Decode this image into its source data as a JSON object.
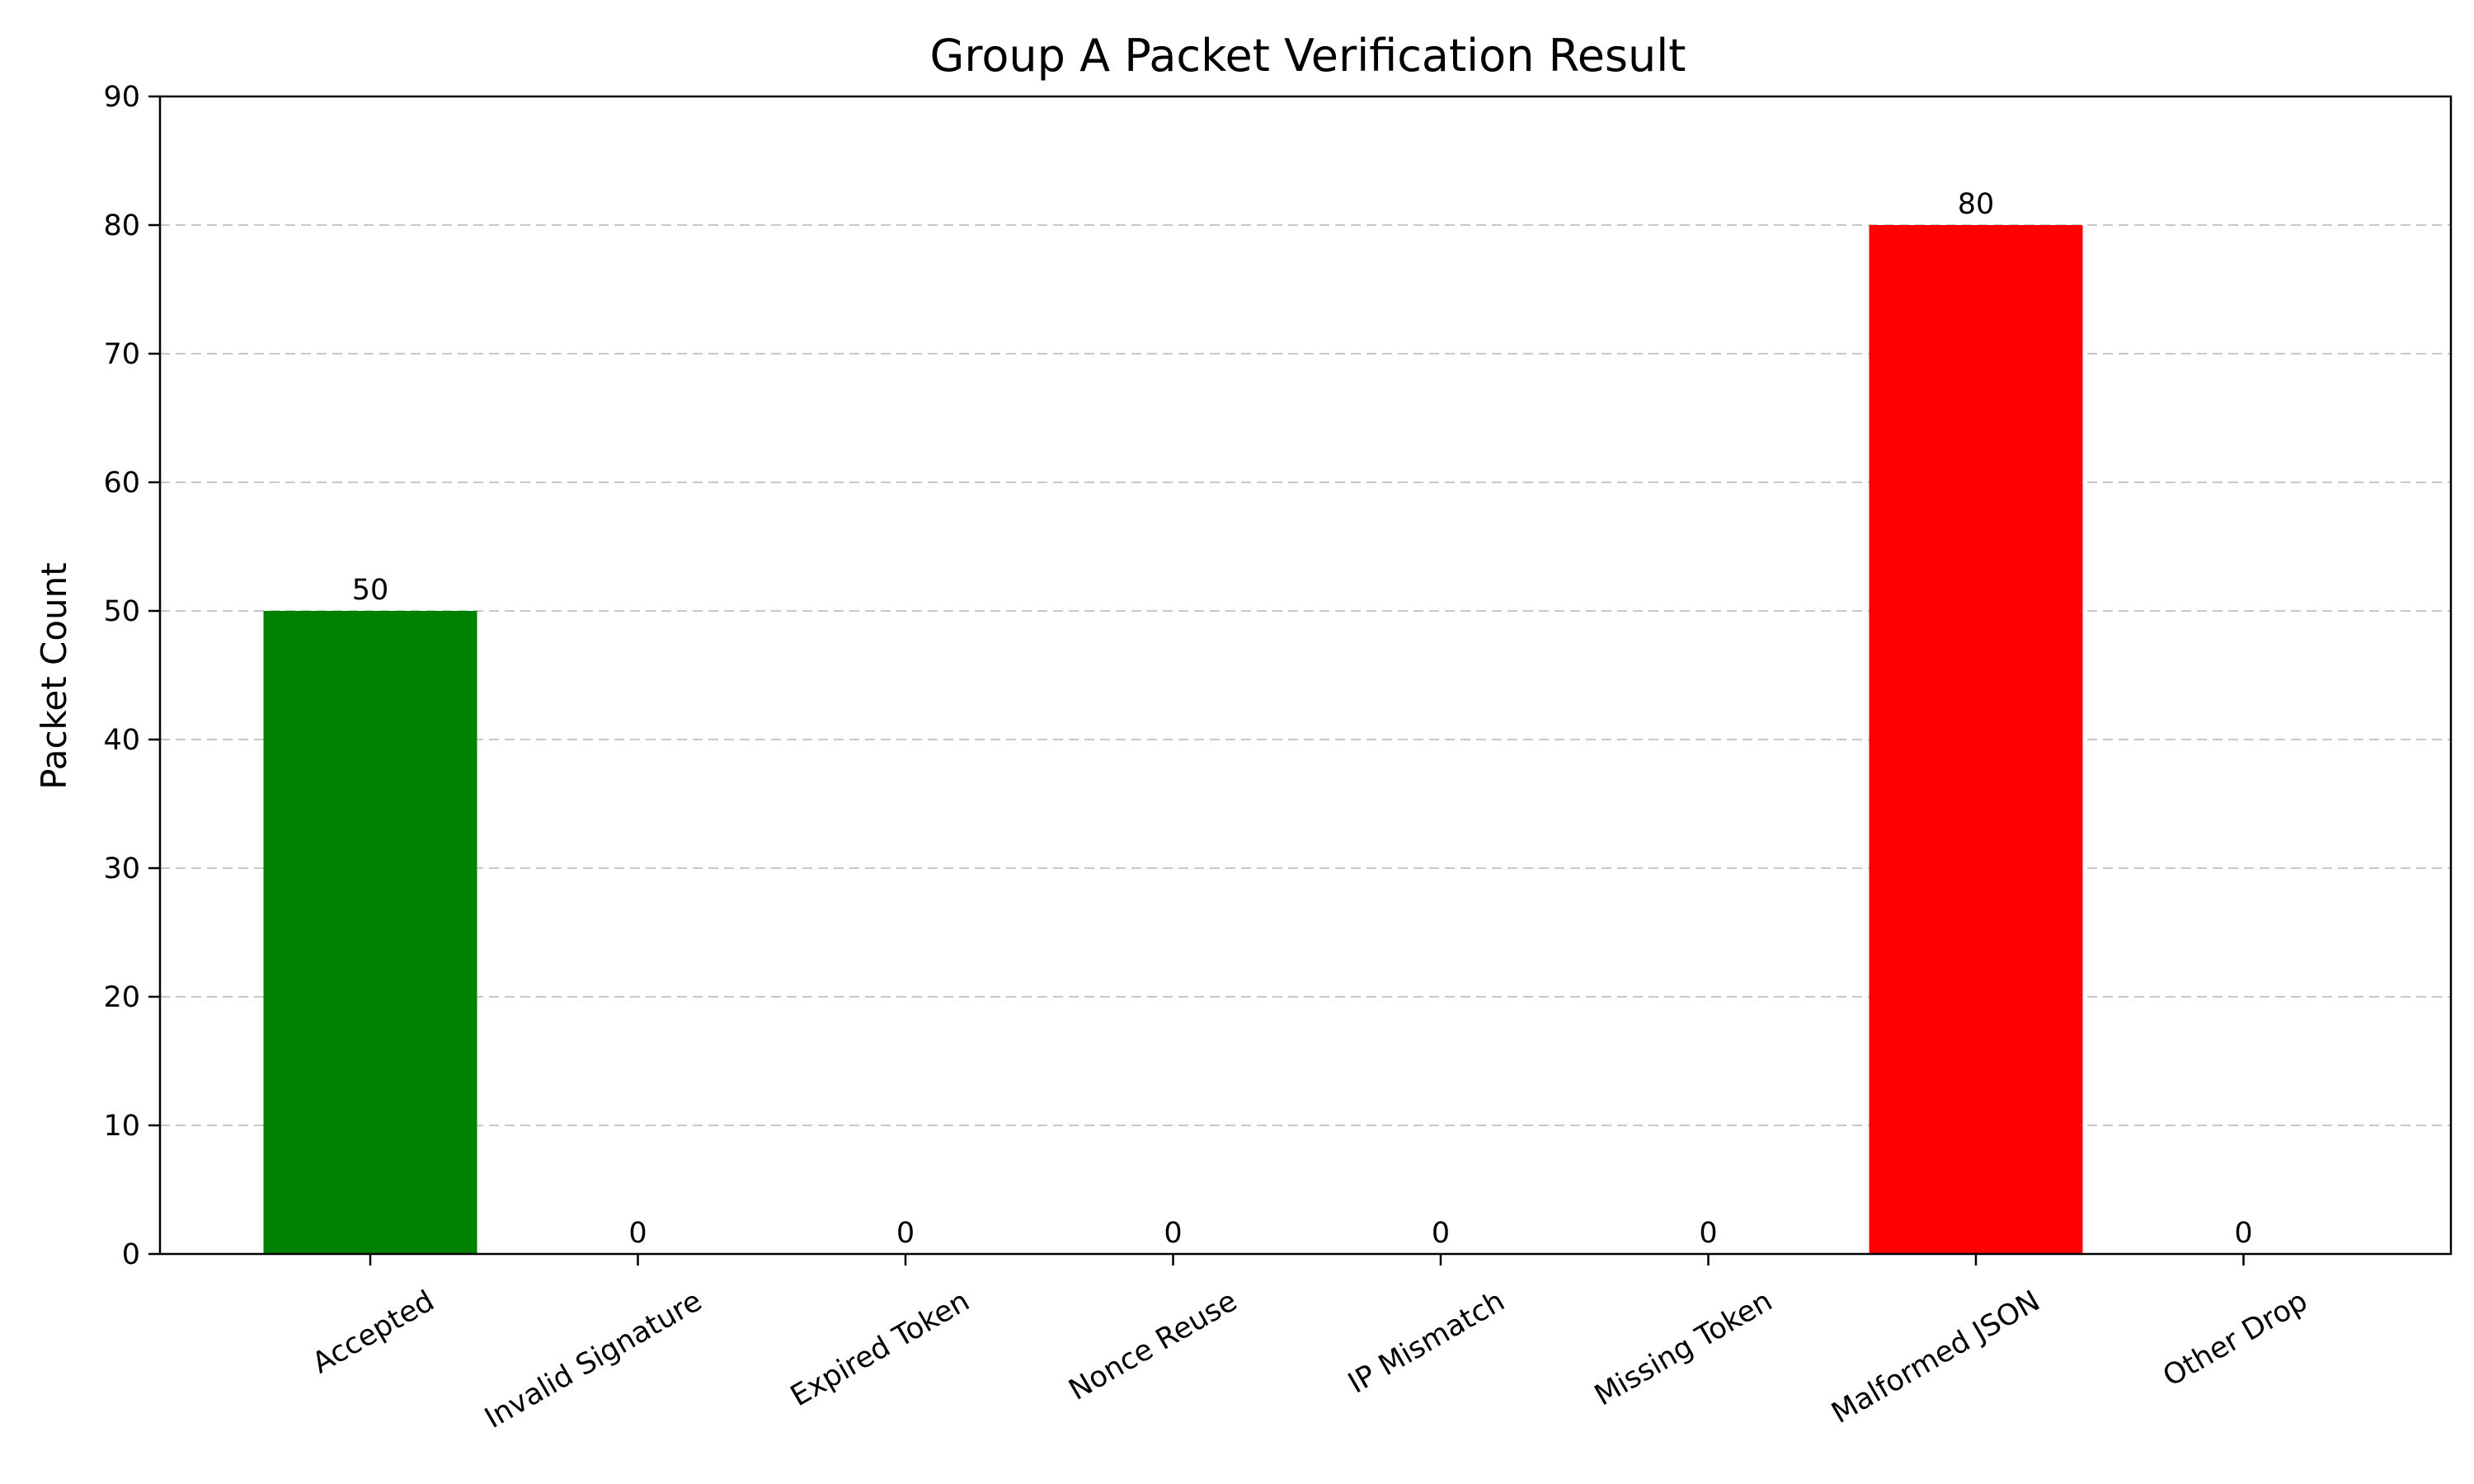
{
  "chart_data": {
    "type": "bar",
    "title": "Group A Packet Verification Result",
    "xlabel": "",
    "ylabel": "Packet Count",
    "categories": [
      "Accepted",
      "Invalid Signature",
      "Expired Token",
      "Nonce Reuse",
      "IP Mismatch",
      "Missing Token",
      "Malformed JSON",
      "Other Drop"
    ],
    "values": [
      50,
      0,
      0,
      0,
      0,
      0,
      80,
      0
    ],
    "bar_colors": [
      "#008000",
      "#008000",
      "#ff0000",
      "#ff0000",
      "#ff0000",
      "#ff0000",
      "#ff0000",
      "#ff0000"
    ],
    "ylim": [
      0,
      90
    ],
    "yticks": [
      0,
      10,
      20,
      30,
      40,
      50,
      60,
      70,
      80,
      90
    ],
    "grid": "y-dashed",
    "legend": "none"
  }
}
